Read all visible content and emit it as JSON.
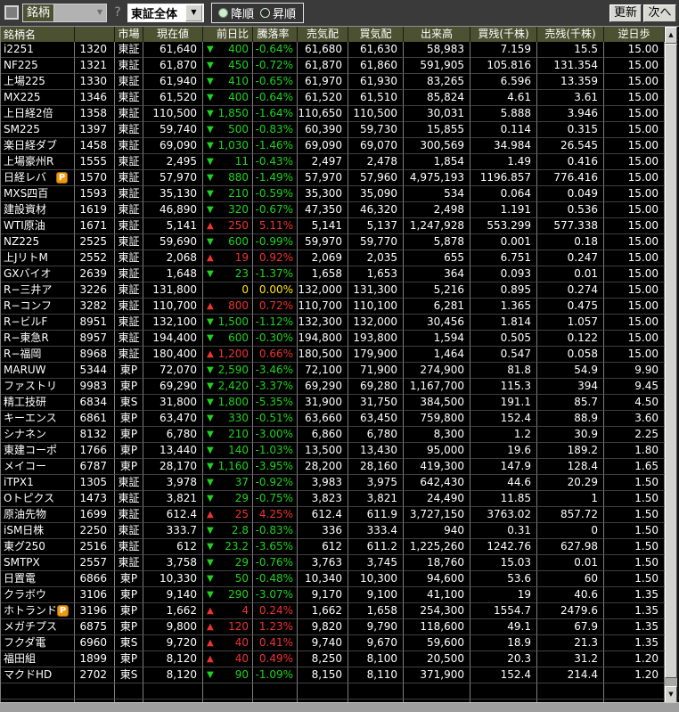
{
  "toolbar": {
    "meigara_label": "銘柄",
    "meigara_value": "",
    "help_label": "?",
    "market_filter_value": "東証全体",
    "sort_options": {
      "desc": "降順",
      "asc": "昇順",
      "selected": "降順"
    },
    "update_label": "更新",
    "next_label": "次へ"
  },
  "icons": {
    "up_arrow": "▲",
    "down_arrow": "▼",
    "dropdown_arrow": "▼",
    "scroll_up": "▲",
    "scroll_down": "▼"
  },
  "colors": {
    "up": "#ee3333",
    "down": "#1fd41f",
    "flat": "#ffe800",
    "header_bg": "#4c5132",
    "badge_bg": "#f0980f"
  },
  "table": {
    "headers": [
      "銘柄名",
      "",
      "市場",
      "現在値",
      "前日比",
      "騰落率",
      "売気配",
      "買気配",
      "出来高",
      "買残(千株)",
      "売残(千株)",
      "逆日歩"
    ],
    "rows": [
      {
        "name": "i2251",
        "badge": "",
        "code": "1320",
        "market": "東証",
        "price": "61,640",
        "dir": "down",
        "change": "400",
        "pct": "-0.64%",
        "ask": "61,680",
        "bid": "61,630",
        "volume": "58,983",
        "buy_balance": "7.159",
        "sell_balance": "15.5",
        "reverse_daily": "15.00"
      },
      {
        "name": "NF225",
        "badge": "",
        "code": "1321",
        "market": "東証",
        "price": "61,870",
        "dir": "down",
        "change": "450",
        "pct": "-0.72%",
        "ask": "61,870",
        "bid": "61,860",
        "volume": "591,905",
        "buy_balance": "105.816",
        "sell_balance": "131.354",
        "reverse_daily": "15.00"
      },
      {
        "name": "上場225",
        "badge": "",
        "code": "1330",
        "market": "東証",
        "price": "61,940",
        "dir": "down",
        "change": "410",
        "pct": "-0.65%",
        "ask": "61,970",
        "bid": "61,930",
        "volume": "83,265",
        "buy_balance": "6.596",
        "sell_balance": "13.359",
        "reverse_daily": "15.00"
      },
      {
        "name": "MX225",
        "badge": "",
        "code": "1346",
        "market": "東証",
        "price": "61,520",
        "dir": "down",
        "change": "400",
        "pct": "-0.64%",
        "ask": "61,520",
        "bid": "61,510",
        "volume": "85,824",
        "buy_balance": "4.61",
        "sell_balance": "3.61",
        "reverse_daily": "15.00"
      },
      {
        "name": "上日経2倍",
        "badge": "",
        "code": "1358",
        "market": "東証",
        "price": "110,500",
        "dir": "down",
        "change": "1,850",
        "pct": "-1.64%",
        "ask": "110,650",
        "bid": "110,500",
        "volume": "30,031",
        "buy_balance": "5.888",
        "sell_balance": "3.946",
        "reverse_daily": "15.00"
      },
      {
        "name": "SM225",
        "badge": "",
        "code": "1397",
        "market": "東証",
        "price": "59,740",
        "dir": "down",
        "change": "500",
        "pct": "-0.83%",
        "ask": "60,390",
        "bid": "59,730",
        "volume": "15,855",
        "buy_balance": "0.114",
        "sell_balance": "0.315",
        "reverse_daily": "15.00"
      },
      {
        "name": "楽日経ダブ",
        "badge": "",
        "code": "1458",
        "market": "東証",
        "price": "69,090",
        "dir": "down",
        "change": "1,030",
        "pct": "-1.46%",
        "ask": "69,090",
        "bid": "69,070",
        "volume": "300,569",
        "buy_balance": "34.984",
        "sell_balance": "26.545",
        "reverse_daily": "15.00"
      },
      {
        "name": "上場豪州R",
        "badge": "",
        "code": "1555",
        "market": "東証",
        "price": "2,495",
        "dir": "down",
        "change": "11",
        "pct": "-0.43%",
        "ask": "2,497",
        "bid": "2,478",
        "volume": "1,854",
        "buy_balance": "1.49",
        "sell_balance": "0.416",
        "reverse_daily": "15.00"
      },
      {
        "name": "日経レバ",
        "badge": "P",
        "code": "1570",
        "market": "東証",
        "price": "57,970",
        "dir": "down",
        "change": "880",
        "pct": "-1.49%",
        "ask": "57,970",
        "bid": "57,960",
        "volume": "4,975,193",
        "buy_balance": "1196.857",
        "sell_balance": "776.416",
        "reverse_daily": "15.00"
      },
      {
        "name": "MXS四百",
        "badge": "",
        "code": "1593",
        "market": "東証",
        "price": "35,130",
        "dir": "down",
        "change": "210",
        "pct": "-0.59%",
        "ask": "35,300",
        "bid": "35,090",
        "volume": "534",
        "buy_balance": "0.064",
        "sell_balance": "0.049",
        "reverse_daily": "15.00"
      },
      {
        "name": "建設資材",
        "badge": "",
        "code": "1619",
        "market": "東証",
        "price": "46,890",
        "dir": "down",
        "change": "320",
        "pct": "-0.67%",
        "ask": "47,350",
        "bid": "46,320",
        "volume": "2,498",
        "buy_balance": "1.191",
        "sell_balance": "0.536",
        "reverse_daily": "15.00"
      },
      {
        "name": "WTI原油",
        "badge": "",
        "code": "1671",
        "market": "東証",
        "price": "5,141",
        "dir": "up",
        "change": "250",
        "pct": "5.11%",
        "ask": "5,141",
        "bid": "5,137",
        "volume": "1,247,928",
        "buy_balance": "553.299",
        "sell_balance": "577.338",
        "reverse_daily": "15.00"
      },
      {
        "name": "NZ225",
        "badge": "",
        "code": "2525",
        "market": "東証",
        "price": "59,690",
        "dir": "down",
        "change": "600",
        "pct": "-0.99%",
        "ask": "59,970",
        "bid": "59,770",
        "volume": "5,878",
        "buy_balance": "0.001",
        "sell_balance": "0.18",
        "reverse_daily": "15.00"
      },
      {
        "name": "上JリトM",
        "badge": "",
        "code": "2552",
        "market": "東証",
        "price": "2,068",
        "dir": "up",
        "change": "19",
        "pct": "0.92%",
        "ask": "2,069",
        "bid": "2,035",
        "volume": "655",
        "buy_balance": "6.751",
        "sell_balance": "0.247",
        "reverse_daily": "15.00"
      },
      {
        "name": "GXバイオ",
        "badge": "",
        "code": "2639",
        "market": "東証",
        "price": "1,648",
        "dir": "down",
        "change": "23",
        "pct": "-1.37%",
        "ask": "1,658",
        "bid": "1,653",
        "volume": "364",
        "buy_balance": "0.093",
        "sell_balance": "0.01",
        "reverse_daily": "15.00"
      },
      {
        "name": "R−三井ア",
        "badge": "",
        "code": "3226",
        "market": "東証",
        "price": "131,800",
        "dir": "flat",
        "change": "0",
        "pct": "0.00%",
        "ask": "132,000",
        "bid": "131,300",
        "volume": "5,216",
        "buy_balance": "0.895",
        "sell_balance": "0.274",
        "reverse_daily": "15.00"
      },
      {
        "name": "R−コンフ",
        "badge": "",
        "code": "3282",
        "market": "東証",
        "price": "110,700",
        "dir": "up",
        "change": "800",
        "pct": "0.72%",
        "ask": "110,700",
        "bid": "110,100",
        "volume": "6,281",
        "buy_balance": "1.365",
        "sell_balance": "0.475",
        "reverse_daily": "15.00"
      },
      {
        "name": "R−ビルF",
        "badge": "",
        "code": "8951",
        "market": "東証",
        "price": "132,100",
        "dir": "down",
        "change": "1,500",
        "pct": "-1.12%",
        "ask": "132,300",
        "bid": "132,000",
        "volume": "30,456",
        "buy_balance": "1.814",
        "sell_balance": "1.057",
        "reverse_daily": "15.00"
      },
      {
        "name": "R−東急R",
        "badge": "",
        "code": "8957",
        "market": "東証",
        "price": "194,400",
        "dir": "down",
        "change": "600",
        "pct": "-0.30%",
        "ask": "194,800",
        "bid": "193,800",
        "volume": "1,594",
        "buy_balance": "0.505",
        "sell_balance": "0.122",
        "reverse_daily": "15.00"
      },
      {
        "name": "R−福岡",
        "badge": "",
        "code": "8968",
        "market": "東証",
        "price": "180,400",
        "dir": "up",
        "change": "1,200",
        "pct": "0.66%",
        "ask": "180,500",
        "bid": "179,900",
        "volume": "1,464",
        "buy_balance": "0.547",
        "sell_balance": "0.058",
        "reverse_daily": "15.00"
      },
      {
        "name": "MARUW",
        "badge": "",
        "code": "5344",
        "market": "東P",
        "price": "72,070",
        "dir": "down",
        "change": "2,590",
        "pct": "-3.46%",
        "ask": "72,100",
        "bid": "71,900",
        "volume": "274,900",
        "buy_balance": "81.8",
        "sell_balance": "54.9",
        "reverse_daily": "9.90"
      },
      {
        "name": "ファストリ",
        "badge": "",
        "code": "9983",
        "market": "東P",
        "price": "69,290",
        "dir": "down",
        "change": "2,420",
        "pct": "-3.37%",
        "ask": "69,290",
        "bid": "69,280",
        "volume": "1,167,700",
        "buy_balance": "115.3",
        "sell_balance": "394",
        "reverse_daily": "9.45"
      },
      {
        "name": "精工技研",
        "badge": "",
        "code": "6834",
        "market": "東S",
        "price": "31,800",
        "dir": "down",
        "change": "1,800",
        "pct": "-5.35%",
        "ask": "31,900",
        "bid": "31,750",
        "volume": "384,500",
        "buy_balance": "191.1",
        "sell_balance": "85.7",
        "reverse_daily": "4.50"
      },
      {
        "name": "キーエンス",
        "badge": "",
        "code": "6861",
        "market": "東P",
        "price": "63,470",
        "dir": "down",
        "change": "330",
        "pct": "-0.51%",
        "ask": "63,660",
        "bid": "63,450",
        "volume": "759,800",
        "buy_balance": "152.4",
        "sell_balance": "88.9",
        "reverse_daily": "3.60"
      },
      {
        "name": "シナネン",
        "badge": "",
        "code": "8132",
        "market": "東P",
        "price": "6,780",
        "dir": "down",
        "change": "210",
        "pct": "-3.00%",
        "ask": "6,860",
        "bid": "6,780",
        "volume": "8,300",
        "buy_balance": "1.2",
        "sell_balance": "30.9",
        "reverse_daily": "2.25"
      },
      {
        "name": "東建コーポ",
        "badge": "",
        "code": "1766",
        "market": "東P",
        "price": "13,440",
        "dir": "down",
        "change": "140",
        "pct": "-1.03%",
        "ask": "13,500",
        "bid": "13,430",
        "volume": "95,000",
        "buy_balance": "19.6",
        "sell_balance": "189.2",
        "reverse_daily": "1.80"
      },
      {
        "name": "メイコー",
        "badge": "",
        "code": "6787",
        "market": "東P",
        "price": "28,170",
        "dir": "down",
        "change": "1,160",
        "pct": "-3.95%",
        "ask": "28,200",
        "bid": "28,160",
        "volume": "419,300",
        "buy_balance": "147.9",
        "sell_balance": "128.4",
        "reverse_daily": "1.65"
      },
      {
        "name": "iTPX1",
        "badge": "",
        "code": "1305",
        "market": "東証",
        "price": "3,978",
        "dir": "down",
        "change": "37",
        "pct": "-0.92%",
        "ask": "3,983",
        "bid": "3,975",
        "volume": "642,430",
        "buy_balance": "44.6",
        "sell_balance": "20.29",
        "reverse_daily": "1.50"
      },
      {
        "name": "Oトピクス",
        "badge": "",
        "code": "1473",
        "market": "東証",
        "price": "3,821",
        "dir": "down",
        "change": "29",
        "pct": "-0.75%",
        "ask": "3,823",
        "bid": "3,821",
        "volume": "24,490",
        "buy_balance": "11.85",
        "sell_balance": "1",
        "reverse_daily": "1.50"
      },
      {
        "name": "原油先物",
        "badge": "",
        "code": "1699",
        "market": "東証",
        "price": "612.4",
        "dir": "up",
        "change": "25",
        "pct": "4.25%",
        "ask": "612.4",
        "bid": "611.9",
        "volume": "3,727,150",
        "buy_balance": "3763.02",
        "sell_balance": "857.72",
        "reverse_daily": "1.50"
      },
      {
        "name": "iSM日株",
        "badge": "",
        "code": "2250",
        "market": "東証",
        "price": "333.7",
        "dir": "down",
        "change": "2.8",
        "pct": "-0.83%",
        "ask": "336",
        "bid": "333.4",
        "volume": "940",
        "buy_balance": "0.31",
        "sell_balance": "0",
        "reverse_daily": "1.50"
      },
      {
        "name": "東グ250",
        "badge": "",
        "code": "2516",
        "market": "東証",
        "price": "612",
        "dir": "down",
        "change": "23.2",
        "pct": "-3.65%",
        "ask": "612",
        "bid": "611.2",
        "volume": "1,225,260",
        "buy_balance": "1242.76",
        "sell_balance": "627.98",
        "reverse_daily": "1.50"
      },
      {
        "name": "SMTPX",
        "badge": "",
        "code": "2557",
        "market": "東証",
        "price": "3,758",
        "dir": "down",
        "change": "29",
        "pct": "-0.76%",
        "ask": "3,763",
        "bid": "3,745",
        "volume": "18,760",
        "buy_balance": "15.03",
        "sell_balance": "0.01",
        "reverse_daily": "1.50"
      },
      {
        "name": "日置電",
        "badge": "",
        "code": "6866",
        "market": "東P",
        "price": "10,330",
        "dir": "down",
        "change": "50",
        "pct": "-0.48%",
        "ask": "10,340",
        "bid": "10,300",
        "volume": "94,600",
        "buy_balance": "53.6",
        "sell_balance": "60",
        "reverse_daily": "1.50"
      },
      {
        "name": "クラボウ",
        "badge": "",
        "code": "3106",
        "market": "東P",
        "price": "9,140",
        "dir": "down",
        "change": "290",
        "pct": "-3.07%",
        "ask": "9,170",
        "bid": "9,100",
        "volume": "41,100",
        "buy_balance": "19",
        "sell_balance": "40.6",
        "reverse_daily": "1.35"
      },
      {
        "name": "ホトランド",
        "badge": "P",
        "code": "3196",
        "market": "東P",
        "price": "1,662",
        "dir": "up",
        "change": "4",
        "pct": "0.24%",
        "ask": "1,662",
        "bid": "1,658",
        "volume": "254,300",
        "buy_balance": "1554.7",
        "sell_balance": "2479.6",
        "reverse_daily": "1.35"
      },
      {
        "name": "メガチプス",
        "badge": "",
        "code": "6875",
        "market": "東P",
        "price": "9,800",
        "dir": "up",
        "change": "120",
        "pct": "1.23%",
        "ask": "9,820",
        "bid": "9,790",
        "volume": "118,600",
        "buy_balance": "49.1",
        "sell_balance": "67.9",
        "reverse_daily": "1.35"
      },
      {
        "name": "フクダ電",
        "badge": "",
        "code": "6960",
        "market": "東S",
        "price": "9,720",
        "dir": "up",
        "change": "40",
        "pct": "0.41%",
        "ask": "9,740",
        "bid": "9,670",
        "volume": "59,600",
        "buy_balance": "18.9",
        "sell_balance": "21.3",
        "reverse_daily": "1.35"
      },
      {
        "name": "福田組",
        "badge": "",
        "code": "1899",
        "market": "東P",
        "price": "8,120",
        "dir": "up",
        "change": "40",
        "pct": "0.49%",
        "ask": "8,250",
        "bid": "8,100",
        "volume": "20,500",
        "buy_balance": "20.3",
        "sell_balance": "31.2",
        "reverse_daily": "1.20"
      },
      {
        "name": "マクドHD",
        "badge": "",
        "code": "2702",
        "market": "東S",
        "price": "8,120",
        "dir": "down",
        "change": "90",
        "pct": "-1.09%",
        "ask": "8,150",
        "bid": "8,110",
        "volume": "371,900",
        "buy_balance": "152.4",
        "sell_balance": "214.4",
        "reverse_daily": "1.20"
      }
    ],
    "empty_rows": 2
  }
}
